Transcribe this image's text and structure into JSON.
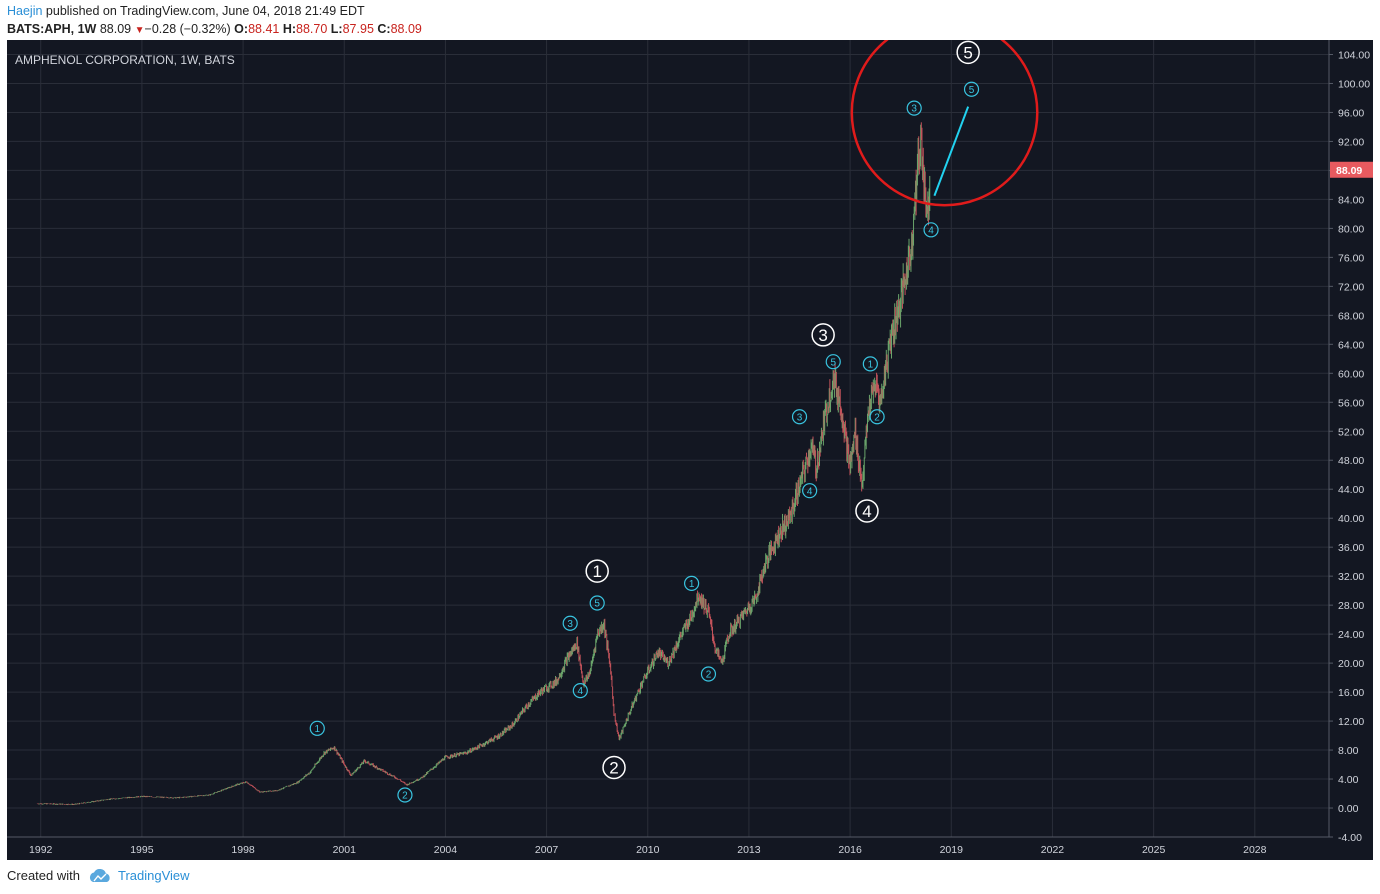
{
  "header": {
    "author": "Haejin",
    "published_text": " published on TradingView.com, June 04, 2018 21:49 EDT",
    "symbol": "BATS:APH, 1W",
    "last": "88.09",
    "change": "−0.28 (−0.32%)",
    "o_label": "O:",
    "o_val": "88.41",
    "h_label": "H:",
    "h_val": "88.70",
    "l_label": "L:",
    "l_val": "87.95",
    "c_label": "C:",
    "c_val": "88.09"
  },
  "footer": {
    "created_with": "Created with",
    "brand": "TradingView"
  },
  "colors": {
    "background": "#131722",
    "grid": "#2a2e39",
    "candle_up": "#6aa56b",
    "candle_down": "#c2525a",
    "wave_minor": "#39c4e0",
    "wave_major": "#ffffff",
    "projection_line": "#22d2f0",
    "circle_highlight": "#e01b1b",
    "price_tag": "#e85a5f"
  },
  "chart_data": {
    "type": "candlestick",
    "title": "AMPHENOL CORPORATION, 1W, BATS",
    "last_price_label": "88.09",
    "last_price": 88.09,
    "x_ticks": [
      "1992",
      "1995",
      "1998",
      "2001",
      "2004",
      "2007",
      "2010",
      "2013",
      "2016",
      "2019",
      "2022",
      "2025",
      "2028"
    ],
    "y_ticks": [
      "104.00",
      "100.00",
      "96.00",
      "92.00",
      "88.00",
      "84.00",
      "80.00",
      "76.00",
      "72.00",
      "68.00",
      "64.00",
      "60.00",
      "56.00",
      "52.00",
      "48.00",
      "44.00",
      "40.00",
      "36.00",
      "32.00",
      "28.00",
      "24.00",
      "20.00",
      "16.00",
      "12.00",
      "8.00",
      "4.00",
      "0.00",
      "-4.00"
    ],
    "xlim": [
      1991.0,
      2030.2
    ],
    "ylim": [
      -4,
      106
    ],
    "price_path": [
      [
        1991.9,
        0.6
      ],
      [
        1993.0,
        0.5
      ],
      [
        1994.0,
        1.2
      ],
      [
        1995.0,
        1.6
      ],
      [
        1996.0,
        1.4
      ],
      [
        1997.0,
        1.8
      ],
      [
        1997.8,
        3.2
      ],
      [
        1998.1,
        3.6
      ],
      [
        1998.5,
        2.2
      ],
      [
        1999.0,
        2.4
      ],
      [
        1999.6,
        3.5
      ],
      [
        2000.0,
        5.0
      ],
      [
        2000.4,
        7.6
      ],
      [
        2000.7,
        8.4
      ],
      [
        2001.0,
        6.0
      ],
      [
        2001.2,
        4.5
      ],
      [
        2001.6,
        6.5
      ],
      [
        2002.0,
        5.5
      ],
      [
        2002.6,
        4.0
      ],
      [
        2002.85,
        3.2
      ],
      [
        2003.3,
        4.2
      ],
      [
        2004.0,
        7.0
      ],
      [
        2004.6,
        7.6
      ],
      [
        2005.0,
        8.5
      ],
      [
        2005.6,
        10.0
      ],
      [
        2006.0,
        11.5
      ],
      [
        2006.4,
        14.0
      ],
      [
        2006.8,
        16.0
      ],
      [
        2007.3,
        17.5
      ],
      [
        2007.6,
        20.5
      ],
      [
        2007.9,
        22.8
      ],
      [
        2008.1,
        17.0
      ],
      [
        2008.3,
        19.0
      ],
      [
        2008.5,
        24.0
      ],
      [
        2008.7,
        25.5
      ],
      [
        2008.9,
        19.0
      ],
      [
        2009.0,
        13.0
      ],
      [
        2009.15,
        9.5
      ],
      [
        2009.4,
        12.5
      ],
      [
        2009.8,
        17.0
      ],
      [
        2010.3,
        21.5
      ],
      [
        2010.6,
        20.0
      ],
      [
        2011.0,
        24.0
      ],
      [
        2011.3,
        26.5
      ],
      [
        2011.5,
        29.5
      ],
      [
        2011.8,
        27.0
      ],
      [
        2012.0,
        22.0
      ],
      [
        2012.2,
        20.0
      ],
      [
        2012.4,
        24.0
      ],
      [
        2012.8,
        26.5
      ],
      [
        2013.2,
        29.0
      ],
      [
        2013.5,
        34.0
      ],
      [
        2013.9,
        38.0
      ],
      [
        2014.2,
        40.0
      ],
      [
        2014.6,
        46.0
      ],
      [
        2014.85,
        50.0
      ],
      [
        2015.0,
        47.0
      ],
      [
        2015.3,
        55.0
      ],
      [
        2015.5,
        59.5
      ],
      [
        2015.75,
        55.0
      ],
      [
        2015.9,
        50.0
      ],
      [
        2016.0,
        47.0
      ],
      [
        2016.15,
        52.0
      ],
      [
        2016.35,
        44.5
      ],
      [
        2016.55,
        55.0
      ],
      [
        2016.75,
        58.5
      ],
      [
        2016.9,
        56.0
      ],
      [
        2017.2,
        65.0
      ],
      [
        2017.5,
        70.0
      ],
      [
        2017.8,
        77.0
      ],
      [
        2018.0,
        88.0
      ],
      [
        2018.1,
        92.5
      ],
      [
        2018.2,
        86.0
      ],
      [
        2018.3,
        82.0
      ],
      [
        2018.38,
        88.09
      ]
    ],
    "projection_line": [
      [
        2018.5,
        84.5
      ],
      [
        2019.5,
        96.8
      ]
    ],
    "highlight_circle": {
      "center": [
        2018.8,
        96.0
      ],
      "radius_years": 2.75
    },
    "minor_waves": [
      {
        "label": "1",
        "x": 2000.2,
        "y": 11.0
      },
      {
        "label": "2",
        "x": 2002.8,
        "y": 1.8
      },
      {
        "label": "3",
        "x": 2007.7,
        "y": 25.5
      },
      {
        "label": "4",
        "x": 2008.0,
        "y": 16.2
      },
      {
        "label": "5",
        "x": 2008.5,
        "y": 28.3
      },
      {
        "label": "1",
        "x": 2011.3,
        "y": 31.0
      },
      {
        "label": "2",
        "x": 2011.8,
        "y": 18.5
      },
      {
        "label": "3",
        "x": 2014.5,
        "y": 54.0
      },
      {
        "label": "4",
        "x": 2014.8,
        "y": 43.8
      },
      {
        "label": "5",
        "x": 2015.5,
        "y": 61.6
      },
      {
        "label": "1",
        "x": 2016.6,
        "y": 61.3
      },
      {
        "label": "2",
        "x": 2016.8,
        "y": 54.0
      },
      {
        "label": "3",
        "x": 2017.9,
        "y": 96.6
      },
      {
        "label": "4",
        "x": 2018.4,
        "y": 79.8
      },
      {
        "label": "5",
        "x": 2019.6,
        "y": 99.2
      }
    ],
    "major_waves": [
      {
        "label": "1",
        "x": 2008.5,
        "y": 32.7
      },
      {
        "label": "2",
        "x": 2009.0,
        "y": 5.6
      },
      {
        "label": "3",
        "x": 2015.2,
        "y": 65.3
      },
      {
        "label": "4",
        "x": 2016.5,
        "y": 41.0
      },
      {
        "label": "5",
        "x": 2019.5,
        "y": 104.3
      }
    ]
  }
}
